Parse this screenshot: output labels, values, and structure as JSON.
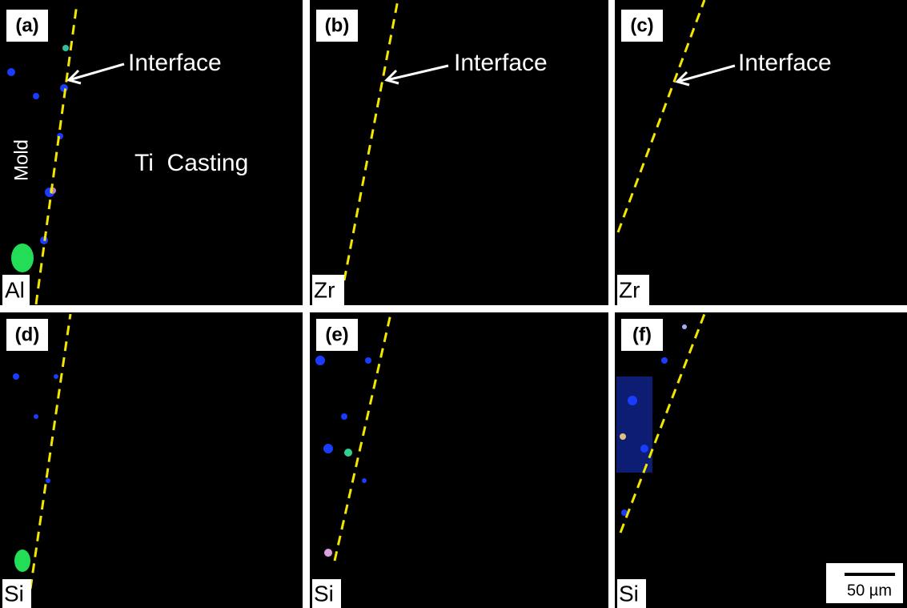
{
  "panels": [
    {
      "label": "(a)",
      "element": "Al",
      "annotations": [
        "Interface",
        "Mold",
        "Ti  Casting"
      ]
    },
    {
      "label": "(b)",
      "element": "Zr",
      "annotations": [
        "Interface"
      ]
    },
    {
      "label": "(c)",
      "element": "Zr",
      "annotations": [
        "Interface"
      ]
    },
    {
      "label": "(d)",
      "element": "Si"
    },
    {
      "label": "(e)",
      "element": "Si"
    },
    {
      "label": "(f)",
      "element": "Si",
      "scale_bar": "50 µm"
    }
  ]
}
